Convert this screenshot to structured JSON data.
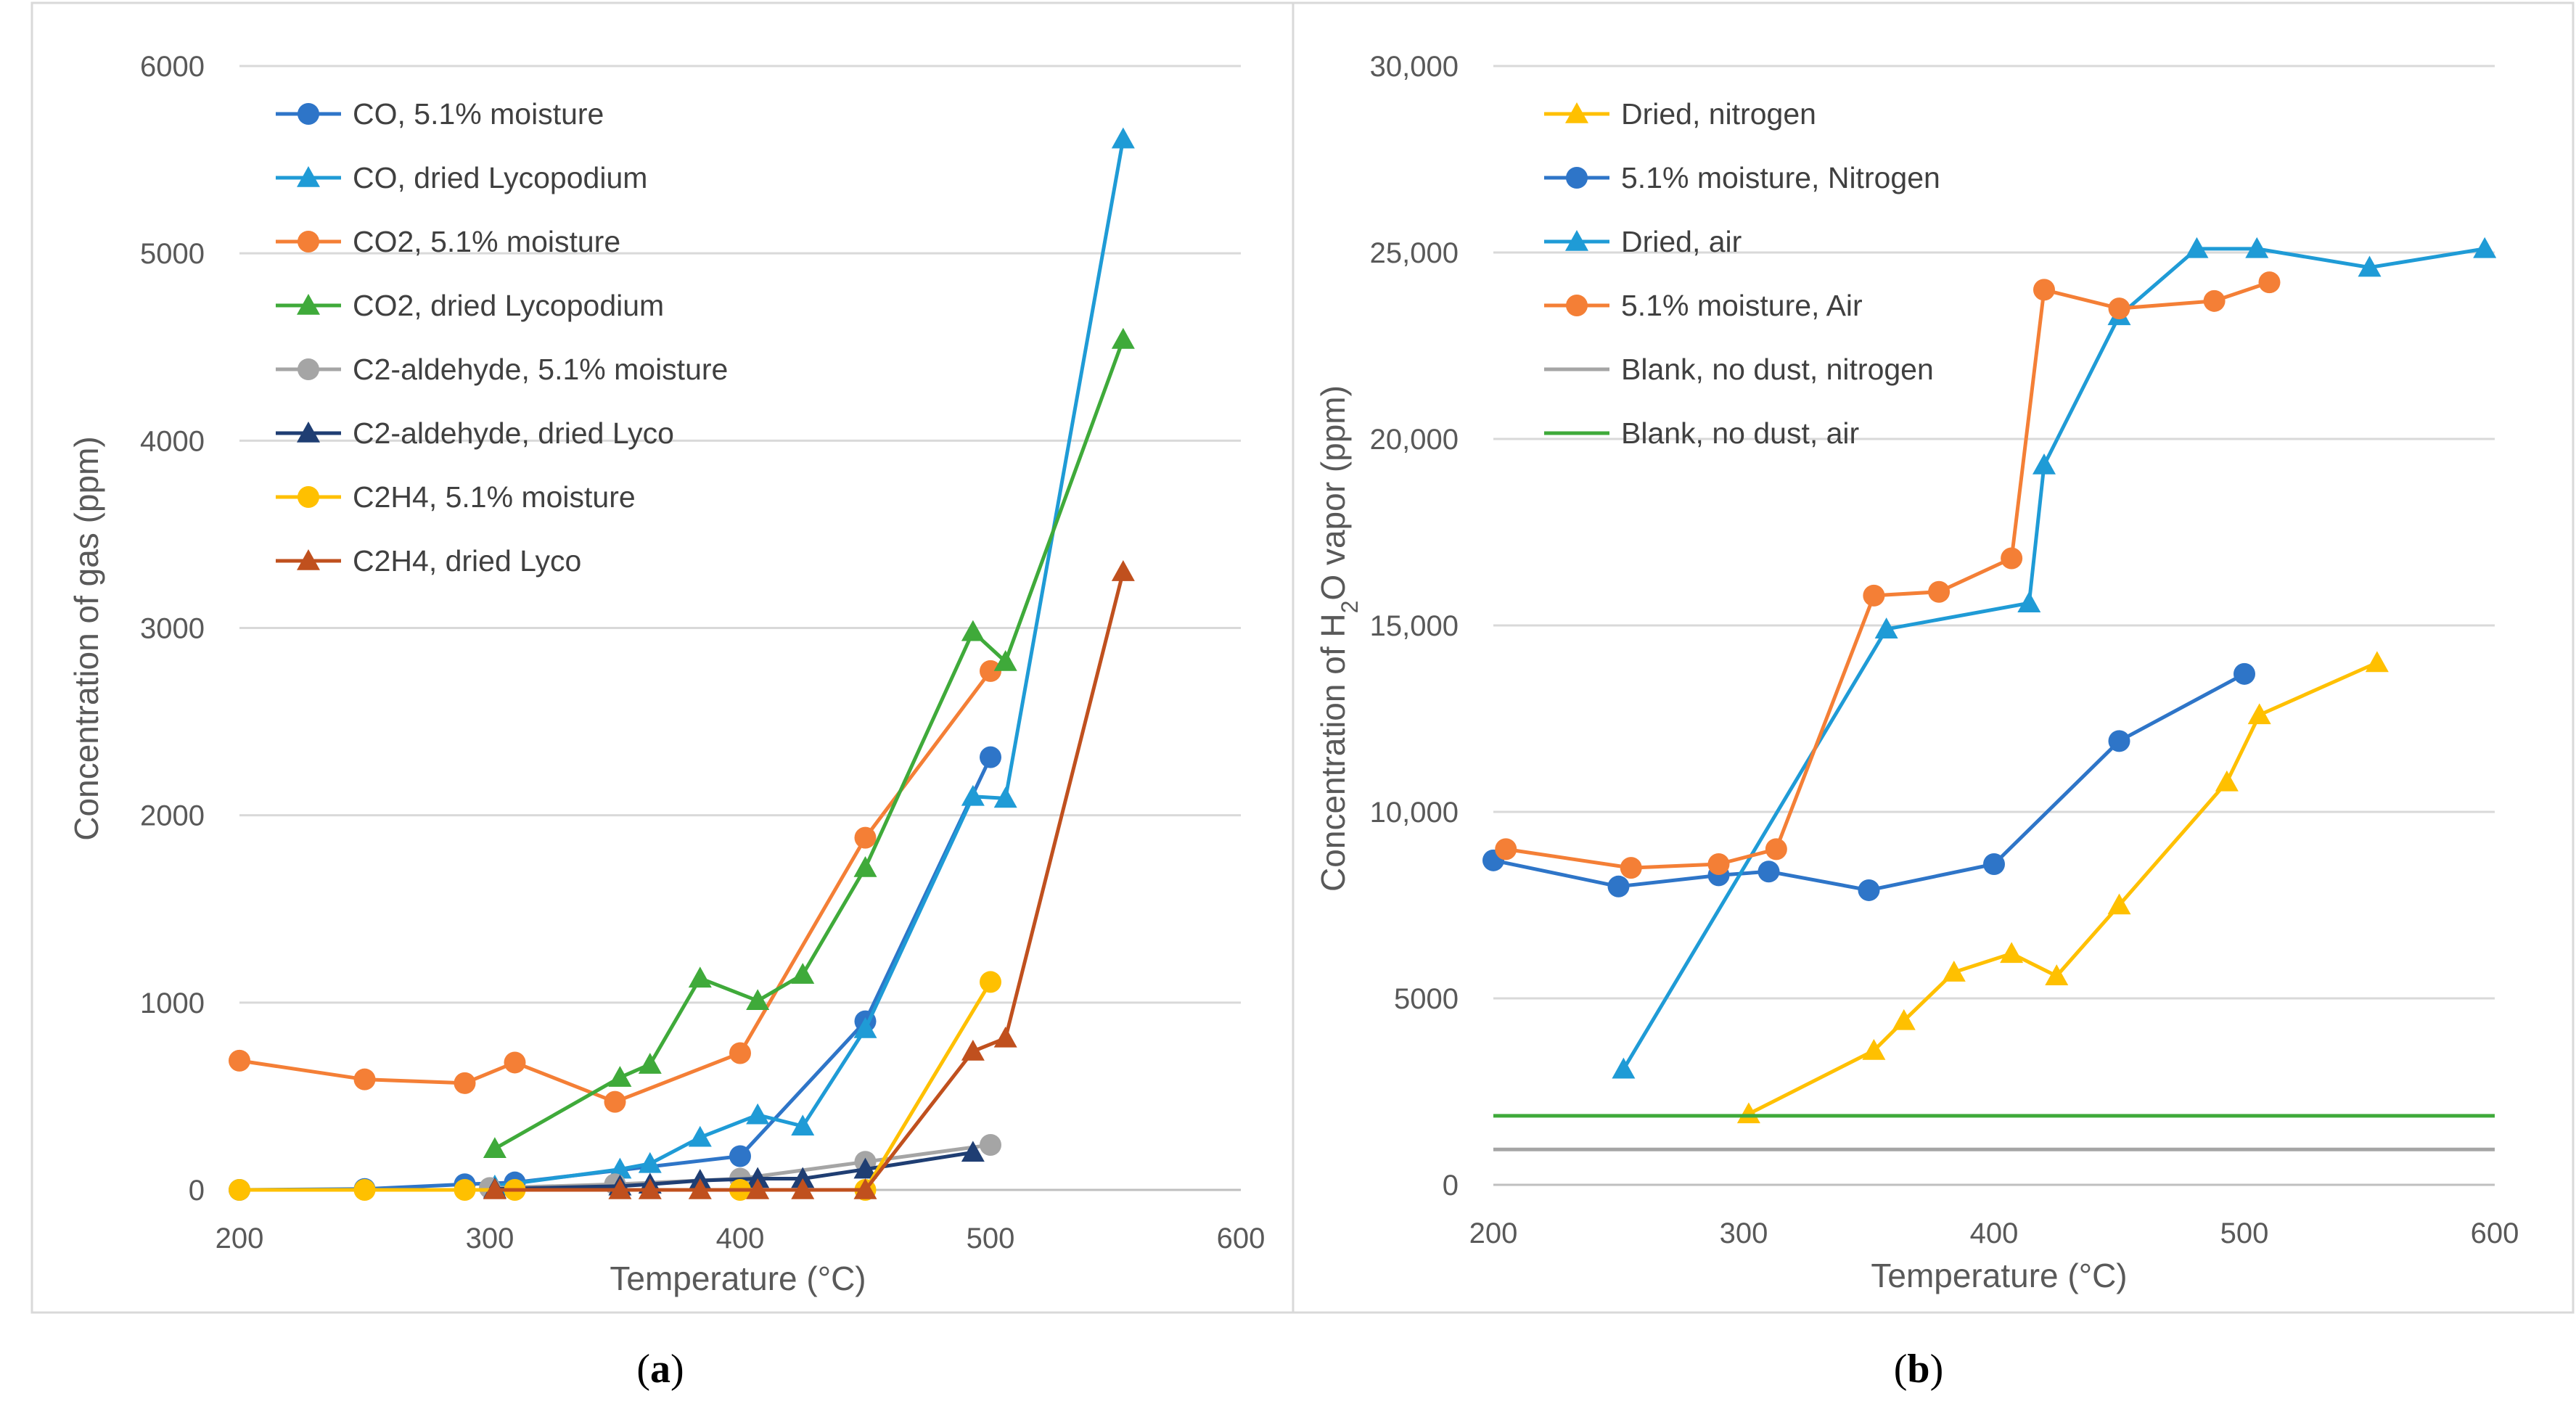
{
  "chart_data": [
    {
      "type": "scatter",
      "panel_caption_open": "(",
      "panel_caption_letter": "a",
      "panel_caption_close": ")",
      "xlabel": "Temperature (°C)",
      "ylabel": "Concentration of gas (ppm)",
      "xlim": [
        200,
        600
      ],
      "ylim": [
        0,
        6000
      ],
      "xticks": [
        "200",
        "300",
        "400",
        "500",
        "600"
      ],
      "yticks": [
        "0",
        "1000",
        "2000",
        "3000",
        "4000",
        "5000",
        "6000"
      ],
      "grid": "horizontal",
      "legend_position": "top-left",
      "series": [
        {
          "name": "CO, 5.1% moisture",
          "color": "#2E75C8",
          "marker": "circle",
          "x": [
            200,
            250,
            290,
            310,
            400,
            450,
            500
          ],
          "y": [
            0,
            5,
            30,
            40,
            180,
            900,
            2310
          ]
        },
        {
          "name": "CO, dried Lycopodium",
          "color": "#1F9BD6",
          "marker": "triangle",
          "x": [
            302,
            352,
            364,
            384,
            407,
            425,
            450,
            493,
            506,
            553
          ],
          "y": [
            20,
            110,
            140,
            280,
            400,
            340,
            860,
            2100,
            2090,
            5610
          ]
        },
        {
          "name": "CO2, 5.1% moisture",
          "color": "#F47F36",
          "marker": "circle",
          "x": [
            200,
            250,
            290,
            310,
            350,
            400,
            450,
            500
          ],
          "y": [
            690,
            590,
            570,
            680,
            470,
            730,
            1880,
            2770
          ]
        },
        {
          "name": "CO2, dried Lycopodium",
          "color": "#3FAA3A",
          "marker": "triangle",
          "x": [
            302,
            352,
            364,
            384,
            407,
            425,
            450,
            493,
            506,
            553
          ],
          "y": [
            220,
            600,
            670,
            1130,
            1010,
            1150,
            1720,
            2980,
            2820,
            4540
          ]
        },
        {
          "name": "C2-aldehyde, 5.1% moisture",
          "color": "#A5A5A5",
          "marker": "circle",
          "x": [
            300,
            350,
            400,
            450,
            500
          ],
          "y": [
            10,
            30,
            60,
            150,
            240
          ]
        },
        {
          "name": "C2-aldehyde, dried Lyco",
          "color": "#1F3E73",
          "marker": "triangle",
          "x": [
            302,
            352,
            364,
            384,
            407,
            425,
            450,
            493
          ],
          "y": [
            5,
            20,
            30,
            50,
            60,
            60,
            110,
            200
          ]
        },
        {
          "name": "C2H4, 5.1% moisture",
          "color": "#FFC000",
          "marker": "circle",
          "x": [
            200,
            250,
            290,
            310,
            400,
            450,
            500
          ],
          "y": [
            0,
            0,
            0,
            0,
            0,
            0,
            1110
          ]
        },
        {
          "name": "C2H4, dried Lyco",
          "color": "#C0501E",
          "marker": "triangle",
          "x": [
            302,
            352,
            364,
            384,
            407,
            425,
            450,
            493,
            506,
            553
          ],
          "y": [
            0,
            0,
            0,
            0,
            0,
            0,
            0,
            740,
            810,
            3300
          ]
        }
      ]
    },
    {
      "type": "scatter",
      "panel_caption_open": "(",
      "panel_caption_letter": "b",
      "panel_caption_close": ")",
      "xlabel": "Temperature (°C)",
      "ylabel_pre": "Concentration of H",
      "ylabel_sub": "2",
      "ylabel_post": "O vapor (ppm)",
      "xlim": [
        200,
        600
      ],
      "ylim": [
        0,
        30000
      ],
      "xticks": [
        "200",
        "300",
        "400",
        "500",
        "600"
      ],
      "yticks": [
        "0",
        "5000",
        "10,000",
        "15,000",
        "20,000",
        "25,000",
        "30,000"
      ],
      "grid": "horizontal",
      "legend_position": "top-left",
      "series": [
        {
          "name": "Dried, nitrogen",
          "color": "#FFC000",
          "marker": "triangle",
          "x": [
            302,
            352,
            364,
            384,
            407,
            425,
            450,
            493,
            506,
            553
          ],
          "y": [
            1900,
            3600,
            4400,
            5700,
            6200,
            5600,
            7500,
            10800,
            12600,
            14000
          ]
        },
        {
          "name": "5.1% moisture, Nitrogen",
          "color": "#2E75C8",
          "marker": "circle",
          "x": [
            200,
            250,
            290,
            310,
            350,
            400,
            450,
            500
          ],
          "y": [
            8700,
            8000,
            8300,
            8400,
            7900,
            8600,
            11900,
            13700
          ]
        },
        {
          "name": "Dried, air",
          "color": "#1F9BD6",
          "marker": "triangle",
          "x": [
            252,
            357,
            414,
            420,
            450,
            481,
            505,
            550,
            596
          ],
          "y": [
            3100,
            14900,
            15600,
            19300,
            23300,
            25100,
            25100,
            24600,
            25100
          ]
        },
        {
          "name": "5.1% moisture, Air",
          "color": "#F47F36",
          "marker": "circle",
          "x": [
            205,
            255,
            290,
            313,
            352,
            378,
            407,
            420,
            450,
            488,
            510
          ],
          "y": [
            9000,
            8500,
            8600,
            9000,
            15800,
            15900,
            16800,
            24000,
            23500,
            23700,
            24200
          ]
        },
        {
          "name": "Blank, no dust, nitrogen",
          "color": "#A5A5A5",
          "marker": "none",
          "x": [
            200,
            600
          ],
          "y": [
            950,
            950
          ]
        },
        {
          "name": "Blank, no dust, air",
          "color": "#3FAA3A",
          "marker": "none",
          "x": [
            200,
            600
          ],
          "y": [
            1850,
            1850
          ]
        }
      ]
    }
  ]
}
